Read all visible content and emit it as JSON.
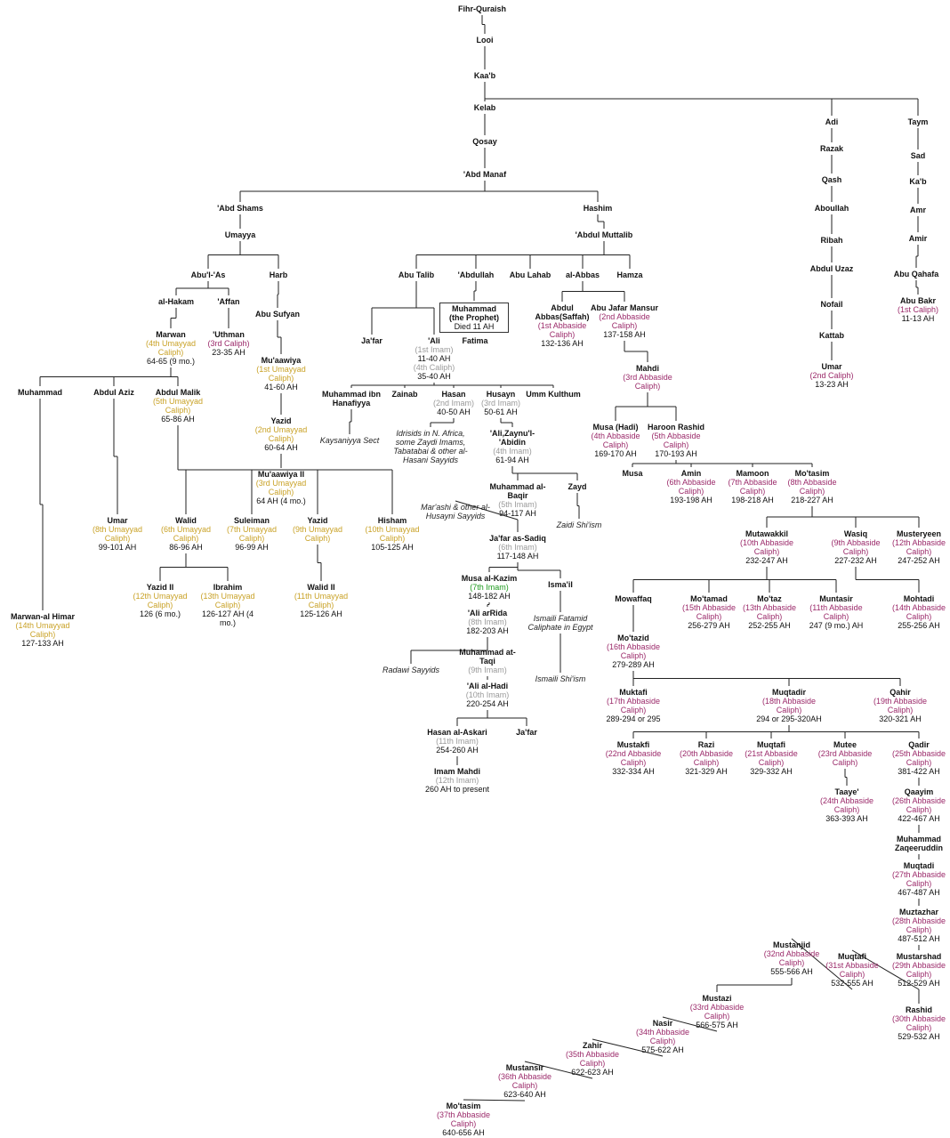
{
  "nodes": [
    {
      "name": "Fihr-Quraish"
    },
    {
      "name": "Looi"
    },
    {
      "name": "Kaa'b"
    },
    {
      "name": "Kelab"
    },
    {
      "name": "Qosay"
    },
    {
      "name": "'Abd Manaf"
    },
    {
      "name": "'Abd Shams"
    },
    {
      "name": "Hashim"
    },
    {
      "name": "Umayya"
    },
    {
      "name": "Abu'l-'As"
    },
    {
      "name": "Harb"
    },
    {
      "name": "al-Hakam"
    },
    {
      "name": "'Affan"
    },
    {
      "name": "Abu Sufyan"
    },
    {
      "name": "Marwan",
      "title": "(4th Umayyad Caliph)",
      "dates": "64-65 (9 mo.)"
    },
    {
      "name": "'Uthman",
      "title": "(3rd Caliph)",
      "dates": "23-35 AH"
    },
    {
      "name": "Mu'aawiya",
      "title": "(1st Umayyad Caliph)",
      "dates": "41-60 AH"
    },
    {
      "name": "Muhammad"
    },
    {
      "name": "Abdul Aziz"
    },
    {
      "name": "Abdul Malik",
      "title": "(5th Umayyad Caliph)",
      "dates": "65-86 AH"
    },
    {
      "name": "Yazid",
      "title": "(2nd Umayyad Caliph)",
      "dates": "60-64 AH"
    },
    {
      "name": "Mu'aawiya II",
      "title": "(3rd Umayyad Caliph)",
      "dates": "64 AH (4 mo.)"
    },
    {
      "name": "Umar",
      "title": "(8th Umayyad Caliph)",
      "dates": "99-101 AH"
    },
    {
      "name": "Walid",
      "title": "(6th Umayyad Caliph)",
      "dates": "86-96 AH"
    },
    {
      "name": "Suleiman",
      "title": "(7th Umayyad Caliph)",
      "dates": "96-99 AH"
    },
    {
      "name": "Yazid",
      "title": "(9th Umayyad Caliph)"
    },
    {
      "name": "Hisham",
      "title": "(10th Umayyad Caliph)",
      "dates": "105-125 AH"
    },
    {
      "name": "Yazid II",
      "title": "(12th Umayyad Caliph)",
      "dates": "126 (6 mo.)"
    },
    {
      "name": "Ibrahim",
      "title": "(13th Umayyad Caliph)",
      "dates": "126-127 AH (4 mo.)"
    },
    {
      "name": "Walid II",
      "title": "(11th Umayyad Caliph)",
      "dates": "125-126 AH"
    },
    {
      "name": "Marwan-al Himar",
      "title": "(14th Umayyad Caliph)",
      "dates": "127-133 AH"
    },
    {
      "name": "'Abdul Muttalib"
    },
    {
      "name": "Abu Talib"
    },
    {
      "name": "'Abdullah"
    },
    {
      "name": "Abu Lahab"
    },
    {
      "name": "al-Abbas"
    },
    {
      "name": "Hamza"
    },
    {
      "name": "Muhammad",
      "title": "(the Prophet)",
      "dates": "Died 11 AH"
    },
    {
      "name": "Abdul Abbas(Saffah)",
      "title": "(1st Abbaside Caliph)",
      "dates": "132-136 AH"
    },
    {
      "name": "Abu Jafar Mansur",
      "title": "(2nd Abbaside Caliph)",
      "dates": "137-158 AH"
    },
    {
      "name": "Ja'far"
    },
    {
      "name": "'Ali",
      "title": "(1st Imam)",
      "dates": "11-40 AH",
      "title2": "(4th Caliph)",
      "dates2": "35-40 AH"
    },
    {
      "name": "Fatima"
    },
    {
      "name": "Mahdi",
      "title": "(3rd Abbaside Caliph)"
    },
    {
      "name": "Muhammad ibn Hanafiyya"
    },
    {
      "name": "Zainab"
    },
    {
      "name": "Hasan",
      "title": "(2nd Imam)",
      "dates": "40-50 AH"
    },
    {
      "name": "Husayn",
      "title": "(3rd Imam)",
      "dates": "50-61 AH"
    },
    {
      "name": "Umm Kulthum"
    },
    {
      "name": "Musa (Hadi)",
      "title": "(4th Abbaside Caliph)",
      "dates": "169-170 AH"
    },
    {
      "name": "Haroon Rashid",
      "title": "(5th Abbaside Caliph)",
      "dates": "170-193 AH"
    },
    {
      "note": "Kaysaniyya Sect"
    },
    {
      "note": "Idrisids in N. Africa, some Zaydi Imams, Tabatabai & other al-Hasani Sayyids"
    },
    {
      "name": "'Ali,Zaynu'l-'Abidin",
      "title": "(4th Imam)",
      "dates": "61-94 AH"
    },
    {
      "name": "Musa"
    },
    {
      "name": "Amin",
      "title": "(6th Abbaside Caliph)",
      "dates": "193-198 AH"
    },
    {
      "name": "Mamoon",
      "title": "(7th Abbaside Caliph)",
      "dates": "198-218 AH"
    },
    {
      "name": "Mo'tasim",
      "title": "(8th Abbaside Caliph)",
      "dates": "218-227 AH"
    },
    {
      "name": "Muhammad al-Baqir",
      "title": "(5th Imam)",
      "dates": "94-117 AH"
    },
    {
      "name": "Zayd"
    },
    {
      "note": "Mar'ashi & other al-Husayni Sayyids"
    },
    {
      "note": "Zaidi Shi'ism"
    },
    {
      "name": "Ja'far as-Sadiq",
      "title": "(6th Imam)",
      "dates": "117-148 AH"
    },
    {
      "name": "Mutawakkil",
      "title": "(10th Abbaside Caliph)",
      "dates": "232-247 AH"
    },
    {
      "name": "Wasiq",
      "title": "(9th Abbaside Caliph)",
      "dates": "227-232 AH"
    },
    {
      "name": "Musteryeen",
      "title": "(12th Abbaside Caliph)",
      "dates": "247-252 AH"
    },
    {
      "name": "Musa al-Kazim",
      "title": "(7th Imam)",
      "dates": "148-182 AH"
    },
    {
      "name": "Isma'il"
    },
    {
      "name": "Mowaffaq"
    },
    {
      "name": "Mo'tamad",
      "title": "(15th Abbaside Caliph)",
      "dates": "256-279 AH"
    },
    {
      "name": "Mo'taz",
      "title": "(13th Abbaside Caliph)",
      "dates": "252-255 AH"
    },
    {
      "name": "Muntasir",
      "title": "(11th Abbaside Caliph)",
      "dates": "247 (9 mo.) AH"
    },
    {
      "name": "Mohtadi",
      "title": "(14th Abbaside Caliph)",
      "dates": "255-256 AH"
    },
    {
      "name": "'Ali arRida",
      "title": "(8th Imam)",
      "dates": "182-203 AH"
    },
    {
      "note": "Ismaili Fatamid Caliphate in Egypt"
    },
    {
      "name": "Mo'tazid",
      "title": "(16th Abbaside Caliph)",
      "dates": "279-289 AH"
    },
    {
      "name": "Muhammad at-Taqi",
      "title": "(9th Imam)"
    },
    {
      "note": "Radawi Sayyids"
    },
    {
      "note": "Ismaili Shi'ism"
    },
    {
      "name": "'Ali al-Hadi",
      "title": "(10th Imam)",
      "dates": "220-254 AH"
    },
    {
      "name": "Muktafi",
      "title": "(17th Abbaside Caliph)",
      "dates": "289-294 or 295"
    },
    {
      "name": "Muqtadir",
      "title": "(18th Abbaside Caliph)",
      "dates": "294 or 295-320AH"
    },
    {
      "name": "Qahir",
      "title": "(19th Abbaside Caliph)",
      "dates": "320-321 AH"
    },
    {
      "name": "Hasan al-Askari",
      "title": "(11th Imam)",
      "dates": "254-260 AH"
    },
    {
      "name": "Ja'far"
    },
    {
      "name": "Mustakfi",
      "title": "(22nd Abbaside Caliph)",
      "dates": "332-334 AH"
    },
    {
      "name": "Razi",
      "title": "(20th Abbaside Caliph)",
      "dates": "321-329 AH"
    },
    {
      "name": "Muqtafi",
      "title": "(21st Abbaside Caliph)",
      "dates": "329-332 AH"
    },
    {
      "name": "Mutee",
      "title": "(23rd Abbaside Caliph)"
    },
    {
      "name": "Qadir",
      "title": "(25th Abbaside Caliph)",
      "dates": "381-422 AH"
    },
    {
      "name": "Imam Mahdi",
      "title": "(12th Imam)",
      "dates": "260 AH to present"
    },
    {
      "name": "Taaye'",
      "title": "(24th Abbaside Caliph)",
      "dates": "363-393 AH"
    },
    {
      "name": "Qaayim",
      "title": "(26th Abbaside Caliph)",
      "dates": "422-467 AH"
    },
    {
      "name": "Muhammad Zaqeeruddin"
    },
    {
      "name": "Muqtadi",
      "title": "(27th Abbaside Caliph)",
      "dates": "467-487 AH"
    },
    {
      "name": "Muztazhar",
      "title": "(28th Abbaside Caliph)",
      "dates": "487-512 AH"
    },
    {
      "name": "Mustarshad",
      "title": "(29th Abbaside Caliph)",
      "dates": "512-529 AH"
    },
    {
      "name": "Muqtafi",
      "title": "(31st Abbaside Caliph)",
      "dates": "532-555 AH"
    },
    {
      "name": "Mustanjid",
      "title": "(32nd Abbaside Caliph)",
      "dates": "555-566 AH"
    },
    {
      "name": "Rashid",
      "title": "(30th Abbaside Caliph)",
      "dates": "529-532 AH"
    },
    {
      "name": "Mustazi",
      "title": "(33rd Abbaside Caliph)",
      "dates": "566-575 AH"
    },
    {
      "name": "Nasir",
      "title": "(34th Abbaside Caliph)",
      "dates": "575-622 AH"
    },
    {
      "name": "Zahir",
      "title": "(35th Abbaside Caliph)",
      "dates": "622-623 AH"
    },
    {
      "name": "Mustansir",
      "title": "(36th Abbaside Caliph)",
      "dates": "623-640 AH"
    },
    {
      "name": "Mo'tasim",
      "title": "(37th Abbaside Caliph)",
      "dates": "640-656 AH"
    },
    {
      "name": "Adi"
    },
    {
      "name": "Razak"
    },
    {
      "name": "Qash"
    },
    {
      "name": "Aboullah"
    },
    {
      "name": "Ribah"
    },
    {
      "name": "Abdul Uzaz"
    },
    {
      "name": "Nofail"
    },
    {
      "name": "Kattab"
    },
    {
      "name": "Umar",
      "title": "(2nd Caliph)",
      "dates": "13-23 AH"
    },
    {
      "name": "Taym"
    },
    {
      "name": "Sad"
    },
    {
      "name": "Ka'b"
    },
    {
      "name": "Amr"
    },
    {
      "name": "Amir"
    },
    {
      "name": "Abu Qahafa"
    },
    {
      "name": "Abu Bakr",
      "title": "(1st Caliph)",
      "dates": "11-13 AH"
    }
  ]
}
